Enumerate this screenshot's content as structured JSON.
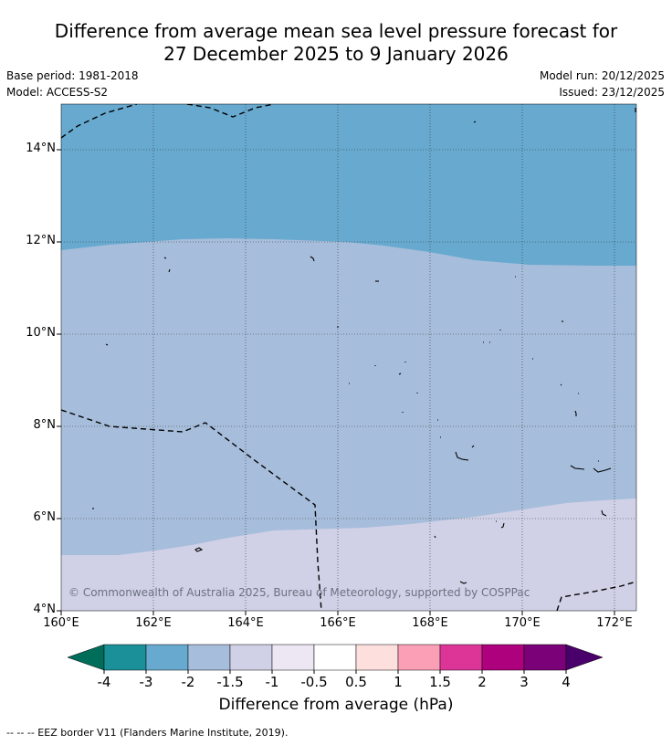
{
  "title_line1": "Difference from average mean sea level pressure forecast for",
  "title_line2": "27 December 2025 to 9 January 2026",
  "base_period": "Base period: 1981-2018",
  "model": "Model: ACCESS-S2",
  "model_run": "Model run: 20/12/2025",
  "issued": "Issued: 23/12/2025",
  "copyright": "© Commonwealth of Australia 2025, Bureau of Meteorology, supported by COSPPac",
  "lat_labels": [
    "14°N",
    "12°N",
    "10°N",
    "8°N",
    "6°N",
    "4°N"
  ],
  "lon_labels": [
    "160°E",
    "162°E",
    "164°E",
    "166°E",
    "168°E",
    "170°E",
    "172°E"
  ],
  "colorbar": {
    "ticks": [
      "-4",
      "-3",
      "-2",
      "-1.5",
      "-1",
      "-0.5",
      "0.5",
      "1",
      "1.5",
      "2",
      "3",
      "4"
    ],
    "colors": [
      "#006d5b",
      "#1b9099",
      "#67a9cf",
      "#a6bddb",
      "#d0d1e6",
      "#ece7f2",
      "#ffffff",
      "#fde0dd",
      "#fa9fb5",
      "#dd3497",
      "#ae017e",
      "#7a0177",
      "#49006a"
    ],
    "title": "Difference from average (hPa)"
  },
  "map_fill_colors": {
    "band_minus_2_to_minus_3": "#67a9cf",
    "band_minus_1_5_to_minus_2": "#a6bddb",
    "band_minus_1_to_minus_1_5": "#d0d1e6"
  },
  "footnote": "--  --  -- EEZ border V11 (Flanders Marine Institute, 2019)."
}
